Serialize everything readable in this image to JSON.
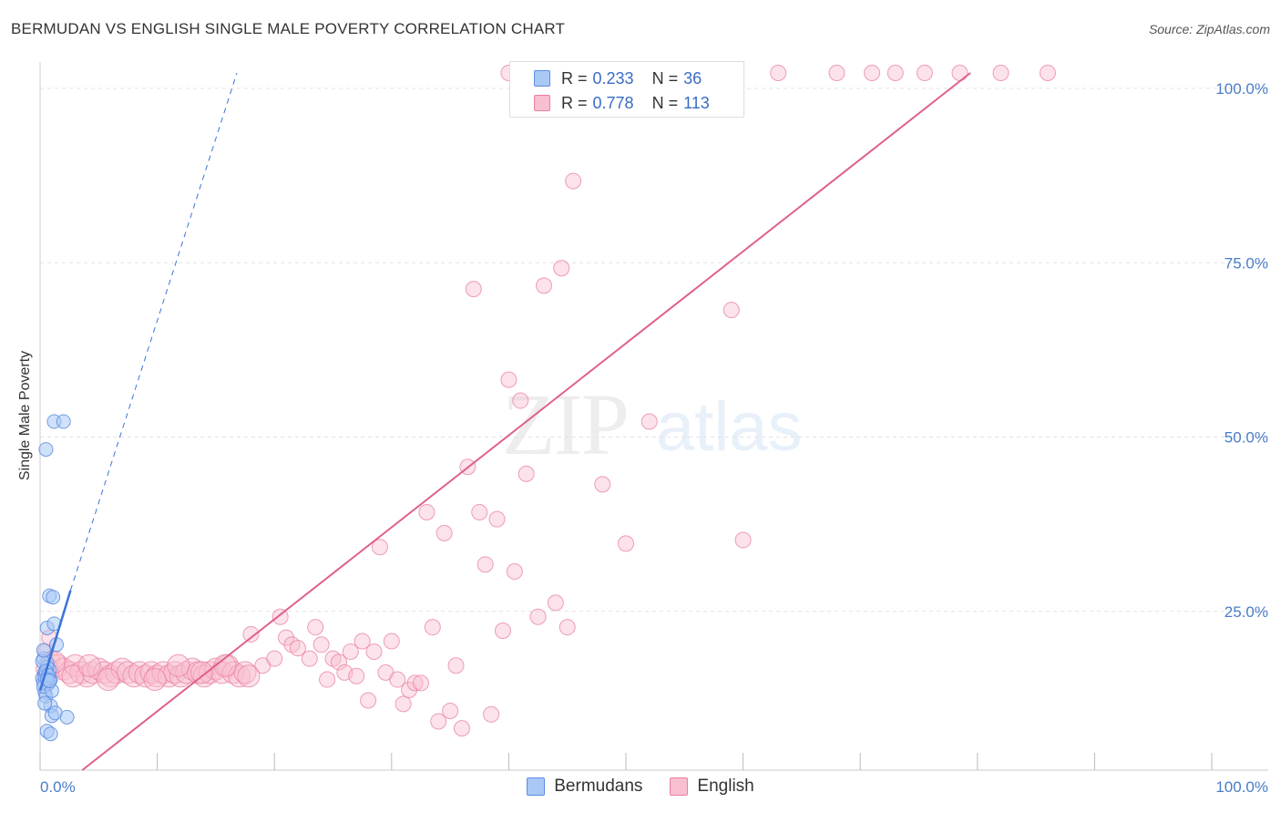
{
  "title": "BERMUDAN VS ENGLISH SINGLE MALE POVERTY CORRELATION CHART",
  "source": "Source: ZipAtlas.com",
  "watermark": {
    "zip": "ZIP",
    "atlas": "atlas"
  },
  "legend": {
    "rows": [
      {
        "r_label": "R =",
        "r_value": "0.233",
        "n_label": "N =",
        "n_value": "36"
      },
      {
        "r_label": "R =",
        "r_value": "0.778",
        "n_label": "N =",
        "n_value": "113"
      }
    ]
  },
  "bottom_legend": {
    "bermudans": "Bermudans",
    "english": "English"
  },
  "colors": {
    "bermudans_fill": "#aac8f5",
    "bermudans_stroke": "#5b8de0",
    "bermudans_line": "#3b74d9",
    "english_fill": "#f8bfd0",
    "english_stroke": "#e8809f",
    "english_line": "#e0608a",
    "tick": "#4a7cc9",
    "grid": "#e3e3e3"
  },
  "chart_data": {
    "type": "scatter",
    "title": "BERMUDAN VS ENGLISH SINGLE MALE POVERTY CORRELATION CHART",
    "xlabel": "",
    "ylabel": "Single Male Poverty",
    "xlim": [
      0,
      100
    ],
    "ylim": [
      0,
      100
    ],
    "x_tick_labels": [
      "0.0%",
      "100.0%"
    ],
    "y_ticks": [
      25,
      50,
      75,
      100
    ],
    "y_tick_labels": [
      "25.0%",
      "50.0%",
      "75.0%",
      "100.0%"
    ],
    "grid": true,
    "legend_position": "top-center",
    "series": [
      {
        "name": "Bermudans",
        "r": 0.233,
        "n": 36,
        "points": [
          [
            0.2,
            13.2
          ],
          [
            0.3,
            12.6
          ],
          [
            0.4,
            14.0
          ],
          [
            0.5,
            13.8
          ],
          [
            0.6,
            15.4
          ],
          [
            0.4,
            11.2
          ],
          [
            0.7,
            12.4
          ],
          [
            0.3,
            16.0
          ],
          [
            0.8,
            14.4
          ],
          [
            0.5,
            10.6
          ],
          [
            0.9,
            13.0
          ],
          [
            0.6,
            20.4
          ],
          [
            0.8,
            25.0
          ],
          [
            0.9,
            9.2
          ],
          [
            1.0,
            7.8
          ],
          [
            0.6,
            5.6
          ],
          [
            1.2,
            21.0
          ],
          [
            0.9,
            5.2
          ],
          [
            1.4,
            18.0
          ],
          [
            1.3,
            8.2
          ],
          [
            2.3,
            7.6
          ],
          [
            0.5,
            46.0
          ],
          [
            1.2,
            50.0
          ],
          [
            2.0,
            50.0
          ],
          [
            0.4,
            13.4
          ],
          [
            0.3,
            12.0
          ],
          [
            0.6,
            14.8
          ],
          [
            0.2,
            15.6
          ],
          [
            0.5,
            14.2
          ],
          [
            0.7,
            13.6
          ],
          [
            1.0,
            11.4
          ],
          [
            0.4,
            9.6
          ],
          [
            0.3,
            17.2
          ],
          [
            1.1,
            24.8
          ],
          [
            0.6,
            13.0
          ],
          [
            0.8,
            12.8
          ]
        ],
        "trend_solid": [
          [
            0.0,
            11.4
          ],
          [
            2.6,
            25.8
          ]
        ],
        "trend_dashed": [
          [
            2.6,
            25.8
          ],
          [
            16.8,
            100
          ]
        ]
      },
      {
        "name": "English",
        "r": 0.778,
        "n": 113,
        "points": [
          [
            0.5,
            17.0
          ],
          [
            0.8,
            19.0
          ],
          [
            1.0,
            16.0
          ],
          [
            1.5,
            15.0
          ],
          [
            2.0,
            14.5
          ],
          [
            2.5,
            14.0
          ],
          [
            3.0,
            15.0
          ],
          [
            3.5,
            14.0
          ],
          [
            4.0,
            13.5
          ],
          [
            4.5,
            14.0
          ],
          [
            5.0,
            14.5
          ],
          [
            5.5,
            14.0
          ],
          [
            6.0,
            13.5
          ],
          [
            6.5,
            14.0
          ],
          [
            7.0,
            14.5
          ],
          [
            7.5,
            14.0
          ],
          [
            8.0,
            13.5
          ],
          [
            8.5,
            14.0
          ],
          [
            9.0,
            13.5
          ],
          [
            9.5,
            14.0
          ],
          [
            10.0,
            13.5
          ],
          [
            10.5,
            14.0
          ],
          [
            11.0,
            13.5
          ],
          [
            11.5,
            14.0
          ],
          [
            12.0,
            13.5
          ],
          [
            12.5,
            14.0
          ],
          [
            13.0,
            14.5
          ],
          [
            13.5,
            14.0
          ],
          [
            14.0,
            13.5
          ],
          [
            14.5,
            14.0
          ],
          [
            15.0,
            14.5
          ],
          [
            15.5,
            14.0
          ],
          [
            16.0,
            15.0
          ],
          [
            16.5,
            14.0
          ],
          [
            17.0,
            13.5
          ],
          [
            17.5,
            14.0
          ],
          [
            18.0,
            19.5
          ],
          [
            19.0,
            15.0
          ],
          [
            20.0,
            16.0
          ],
          [
            20.5,
            22.0
          ],
          [
            21.0,
            19.0
          ],
          [
            21.5,
            18.0
          ],
          [
            22.0,
            17.5
          ],
          [
            23.0,
            16.0
          ],
          [
            23.5,
            20.5
          ],
          [
            24.0,
            18.0
          ],
          [
            24.5,
            13.0
          ],
          [
            25.0,
            16.0
          ],
          [
            25.5,
            15.5
          ],
          [
            26.0,
            14.0
          ],
          [
            26.5,
            17.0
          ],
          [
            27.0,
            13.5
          ],
          [
            27.5,
            18.5
          ],
          [
            28.0,
            10.0
          ],
          [
            28.5,
            17.0
          ],
          [
            29.0,
            32.0
          ],
          [
            29.5,
            14.0
          ],
          [
            30.0,
            18.5
          ],
          [
            30.5,
            13.0
          ],
          [
            31.0,
            9.5
          ],
          [
            31.5,
            11.5
          ],
          [
            32.0,
            12.5
          ],
          [
            32.5,
            12.5
          ],
          [
            33.0,
            37.0
          ],
          [
            33.5,
            20.5
          ],
          [
            34.0,
            7.0
          ],
          [
            34.5,
            34.0
          ],
          [
            35.0,
            8.5
          ],
          [
            35.5,
            15.0
          ],
          [
            36.0,
            6.0
          ],
          [
            36.5,
            43.5
          ],
          [
            37.0,
            69.0
          ],
          [
            37.5,
            37.0
          ],
          [
            38.0,
            29.5
          ],
          [
            38.5,
            8.0
          ],
          [
            39.0,
            36.0
          ],
          [
            39.5,
            20.0
          ],
          [
            40.0,
            56.0
          ],
          [
            40.5,
            28.5
          ],
          [
            41.0,
            53.0
          ],
          [
            41.5,
            42.5
          ],
          [
            42.5,
            22.0
          ],
          [
            43.0,
            69.5
          ],
          [
            44.0,
            24.0
          ],
          [
            44.5,
            72.0
          ],
          [
            45.0,
            20.5
          ],
          [
            45.5,
            84.5
          ],
          [
            48.0,
            41.0
          ],
          [
            50.0,
            32.5
          ],
          [
            52.0,
            50.0
          ],
          [
            59.0,
            66.0
          ],
          [
            60.0,
            33.0
          ],
          [
            40.0,
            100
          ],
          [
            43.5,
            100
          ],
          [
            46.0,
            100
          ],
          [
            48.5,
            100
          ],
          [
            50.5,
            100
          ],
          [
            53.0,
            100
          ],
          [
            55.5,
            100
          ],
          [
            63.0,
            100
          ],
          [
            68.0,
            100
          ],
          [
            71.0,
            100
          ],
          [
            73.0,
            100
          ],
          [
            75.5,
            100
          ],
          [
            78.5,
            100
          ],
          [
            82.0,
            100
          ],
          [
            86.0,
            100
          ],
          [
            0.6,
            14.5
          ],
          [
            1.2,
            15.5
          ],
          [
            2.8,
            13.5
          ],
          [
            4.2,
            15.0
          ],
          [
            5.8,
            13.0
          ],
          [
            9.8,
            13.0
          ],
          [
            11.8,
            15.0
          ],
          [
            13.8,
            14.0
          ],
          [
            15.8,
            15.0
          ],
          [
            17.8,
            13.5
          ]
        ],
        "trend_solid": [
          [
            3.6,
            0.0
          ],
          [
            79.4,
            100
          ]
        ]
      }
    ]
  }
}
